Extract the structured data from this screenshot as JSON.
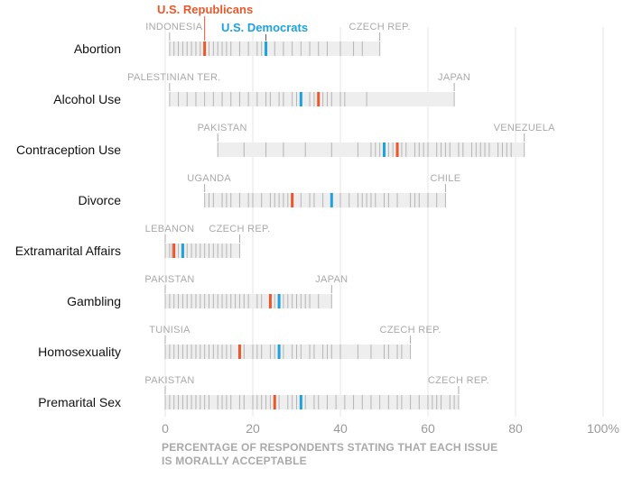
{
  "chart_data": {
    "type": "range-strip",
    "xlabel_lines": [
      "PERCENTAGE OF RESPONDENTS STATING THAT EACH ISSUE",
      "IS MORALLY ACCEPTABLE"
    ],
    "xlim": [
      0,
      100
    ],
    "xticks": [
      "0",
      "20",
      "40",
      "60",
      "80",
      "100%"
    ],
    "grid": true,
    "legend": {
      "republicans": "U.S. Republicans",
      "democrats": "U.S. Democrats"
    },
    "colors": {
      "republicans": "#e8582a",
      "democrats": "#1ea1dd",
      "country_mark": "#b5b5b5",
      "track": "#eeeeee"
    },
    "issues": [
      {
        "name": "Abortion",
        "min_country": "INDONESIA",
        "min": 1,
        "max_country": "CZECH REP.",
        "max": 49,
        "republicans": 9,
        "democrats": 23,
        "countries": [
          1,
          2,
          3,
          4,
          5,
          6,
          7,
          8,
          9,
          10,
          11,
          12,
          13,
          14,
          15,
          17,
          19,
          21,
          22,
          25,
          27,
          29,
          31,
          33,
          35,
          37,
          40,
          43,
          45,
          49
        ]
      },
      {
        "name": "Alcohol Use",
        "min_country": "PALESTINIAN TER.",
        "min": 1,
        "max_country": "JAPAN",
        "max": 66,
        "republicans": 35,
        "democrats": 31,
        "countries": [
          1,
          3,
          5,
          7,
          9,
          11,
          13,
          15,
          17,
          19,
          21,
          23,
          24,
          26,
          27,
          29,
          30,
          33,
          34,
          36,
          37,
          38,
          40,
          41,
          46,
          66
        ]
      },
      {
        "name": "Contraception Use",
        "min_country": "PAKISTAN",
        "min": 12,
        "max_country": "VENEZUELA",
        "max": 82,
        "republicans": 53,
        "democrats": 50,
        "countries": [
          12,
          18,
          23,
          27,
          32,
          38,
          44,
          47,
          48,
          49,
          51,
          52,
          54,
          55,
          57,
          58,
          59,
          60,
          62,
          63,
          64,
          65,
          67,
          68,
          70,
          71,
          72,
          73,
          74,
          76,
          77,
          78,
          79,
          82
        ]
      },
      {
        "name": "Divorce",
        "min_country": "UGANDA",
        "min": 9,
        "max_country": "CHILE",
        "max": 64,
        "republicans": 29,
        "democrats": 38,
        "countries": [
          9,
          10,
          11,
          13,
          14,
          15,
          17,
          19,
          20,
          22,
          24,
          25,
          26,
          27,
          28,
          31,
          33,
          34,
          36,
          40,
          42,
          44,
          45,
          46,
          47,
          48,
          50,
          51,
          53,
          56,
          57,
          58,
          60,
          62,
          64
        ]
      },
      {
        "name": "Extramarital Affairs",
        "min_country": "LEBANON",
        "min": 0,
        "max_country": "CZECH REP.",
        "max": 17,
        "republicans": 2,
        "democrats": 4,
        "countries": [
          0,
          1,
          1.5,
          3,
          5,
          6,
          7,
          8,
          9,
          10,
          11,
          12,
          13,
          14,
          15,
          17
        ]
      },
      {
        "name": "Gambling",
        "min_country": "PAKISTAN",
        "min": 0,
        "max_country": "JAPAN",
        "max": 38,
        "republicans": 24,
        "democrats": 26,
        "countries": [
          0,
          1,
          2,
          3,
          4,
          5,
          6,
          7,
          8,
          9,
          10,
          11,
          12,
          13,
          14,
          15,
          16,
          17,
          18,
          19,
          21,
          22,
          25,
          27,
          28,
          29,
          30,
          31,
          32,
          33,
          35,
          38
        ]
      },
      {
        "name": "Homosexuality",
        "min_country": "TUNISIA",
        "min": 0,
        "max_country": "CZECH REP.",
        "max": 56,
        "republicans": 17,
        "democrats": 26,
        "countries": [
          0,
          1,
          2,
          3,
          4,
          5,
          6,
          7,
          8,
          9,
          10,
          11,
          12,
          13,
          14,
          15,
          18,
          20,
          21,
          22,
          24,
          25,
          27,
          29,
          30,
          31,
          33,
          34,
          36,
          37,
          38,
          40,
          44,
          47,
          50,
          51,
          53,
          54,
          56
        ]
      },
      {
        "name": "Premarital Sex",
        "min_country": "PAKISTAN",
        "min": 0,
        "max_country": "CZECH REP.",
        "max": 67,
        "republicans": 25,
        "democrats": 31,
        "countries": [
          0,
          1,
          2,
          3,
          4,
          5,
          6,
          7,
          8,
          9,
          10,
          12,
          13,
          14,
          15,
          17,
          18,
          20,
          21,
          22,
          23,
          24,
          26,
          28,
          29,
          30,
          32,
          34,
          35,
          37,
          39,
          41,
          43,
          45,
          47,
          49,
          51,
          53,
          54,
          56,
          58,
          60,
          61,
          62,
          63,
          65,
          66,
          67
        ]
      }
    ]
  }
}
